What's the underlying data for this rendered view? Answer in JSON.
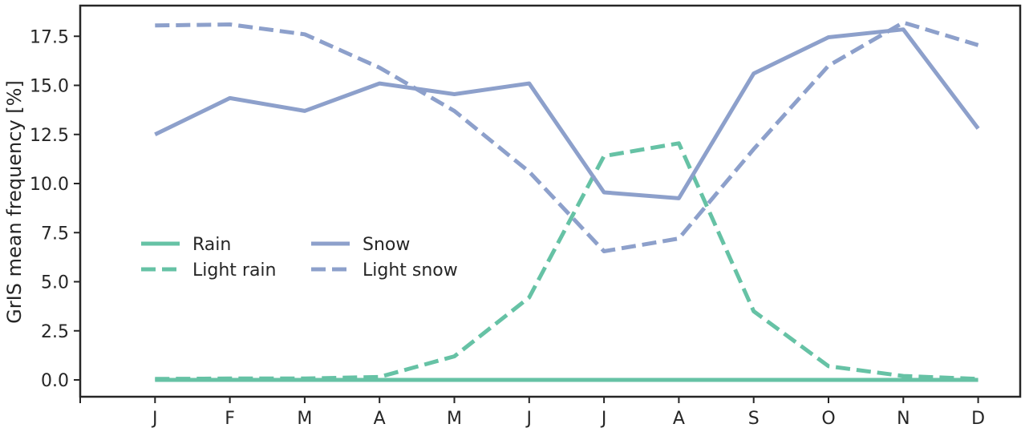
{
  "chart_data": {
    "type": "line",
    "title": "",
    "xlabel": "",
    "ylabel": "GrIS mean frequency [%]",
    "categories": [
      "J",
      "F",
      "M",
      "A",
      "M",
      "J",
      "J",
      "A",
      "S",
      "O",
      "N",
      "D"
    ],
    "ylim": [
      -0.9,
      19.0
    ],
    "yticks": [
      0.0,
      2.5,
      5.0,
      7.5,
      10.0,
      12.5,
      15.0,
      17.5
    ],
    "ytick_labels": [
      "0.0",
      "2.5",
      "5.0",
      "7.5",
      "10.0",
      "12.5",
      "15.0",
      "17.5"
    ],
    "grid": false,
    "legend_position": "center-left",
    "series": [
      {
        "name": "Rain",
        "style": "solid",
        "color": "#66c2a5",
        "values": [
          0.0,
          0.0,
          0.0,
          0.0,
          0.0,
          0.0,
          0.0,
          0.0,
          0.0,
          0.0,
          0.0,
          0.0
        ]
      },
      {
        "name": "Light rain",
        "style": "dashed",
        "color": "#66c2a5",
        "values": [
          0.05,
          0.07,
          0.07,
          0.15,
          1.2,
          4.2,
          11.4,
          12.05,
          3.5,
          0.7,
          0.2,
          0.05
        ]
      },
      {
        "name": "Snow",
        "style": "solid",
        "color": "#8da0cb",
        "values": [
          12.5,
          14.35,
          13.7,
          15.1,
          14.55,
          15.1,
          9.55,
          9.25,
          15.6,
          17.45,
          17.85,
          12.8
        ]
      },
      {
        "name": "Light snow",
        "style": "dashed",
        "color": "#8da0cb",
        "values": [
          18.05,
          18.1,
          17.6,
          15.9,
          13.7,
          10.6,
          6.55,
          7.2,
          11.75,
          16.0,
          18.2,
          17.05
        ]
      }
    ]
  }
}
